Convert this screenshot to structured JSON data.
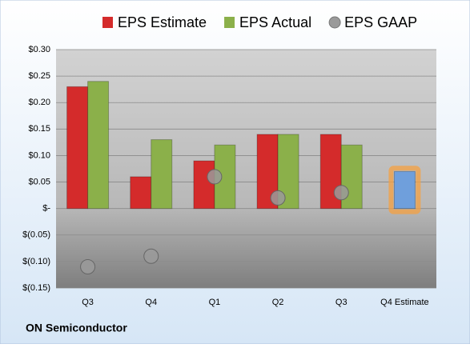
{
  "chart_data": {
    "type": "bar",
    "footer": "ON Semiconductor",
    "categories": [
      "Q3",
      "Q4",
      "Q1",
      "Q2",
      "Q3",
      "Q4 Estimate"
    ],
    "series": [
      {
        "name": "EPS Estimate",
        "color": "#d42b2b",
        "values": [
          0.23,
          0.06,
          0.09,
          0.14,
          0.14,
          0.07
        ]
      },
      {
        "name": "EPS Actual",
        "color": "#8bb04a",
        "values": [
          0.24,
          0.13,
          0.12,
          0.14,
          0.12,
          null
        ]
      },
      {
        "name": "EPS GAAP",
        "color": "#9a9a9a",
        "marker": "circle",
        "values": [
          -0.11,
          -0.09,
          0.06,
          0.02,
          0.03,
          null
        ]
      }
    ],
    "highlight": {
      "index": 5,
      "color": "#6f9fdc",
      "glow": "#f5a040"
    },
    "ylim": [
      -0.15,
      0.3
    ],
    "yticks": [
      {
        "value": -0.15,
        "label": "$(0.15)"
      },
      {
        "value": -0.1,
        "label": "$(0.10)"
      },
      {
        "value": -0.05,
        "label": "$(0.05)"
      },
      {
        "value": 0,
        "label": "$-"
      },
      {
        "value": 0.05,
        "label": "$0.05"
      },
      {
        "value": 0.1,
        "label": "$0.10"
      },
      {
        "value": 0.15,
        "label": "$0.15"
      },
      {
        "value": 0.2,
        "label": "$0.20"
      },
      {
        "value": 0.25,
        "label": "$0.25"
      },
      {
        "value": 0.3,
        "label": "$0.30"
      }
    ],
    "grid": true,
    "legend": "top"
  }
}
